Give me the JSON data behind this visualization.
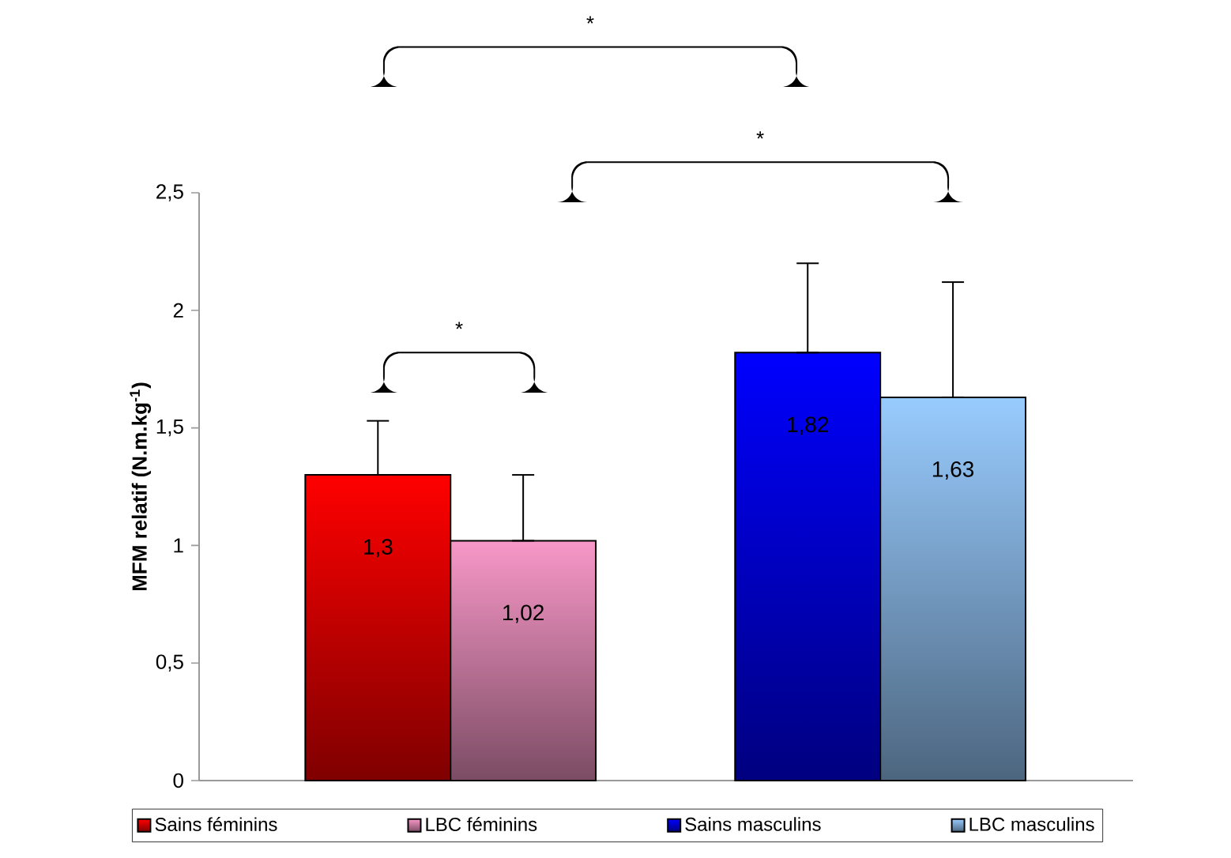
{
  "chart_data": {
    "type": "bar",
    "ylabel": "MFM relatif (N.m.kg$^{-1}$)",
    "categories": [
      null,
      null
    ],
    "series": [
      {
        "name": "Sains féminins",
        "color": "#ff0000",
        "values": [
          1.3,
          null
        ],
        "errors": [
          [
            1.3,
            1.53
          ],
          null
        ],
        "value_labels": [
          "1,3",
          null
        ]
      },
      {
        "name": "LBC féminins",
        "color": "#f898c8",
        "values": [
          1.02,
          null
        ],
        "errors": [
          [
            1.02,
            1.3
          ],
          null
        ],
        "value_labels": [
          "1,02",
          null
        ]
      },
      {
        "name": "Sains masculins",
        "color": "#0000ff",
        "values": [
          null,
          1.82
        ],
        "errors": [
          null,
          [
            1.82,
            2.2
          ]
        ],
        "value_labels": [
          null,
          "1,82"
        ]
      },
      {
        "name": "LBC masculins",
        "color": "#99ccff",
        "values": [
          null,
          1.63
        ],
        "errors": [
          null,
          [
            1.63,
            2.12
          ]
        ],
        "value_labels": [
          null,
          "1,63"
        ]
      }
    ],
    "ylim": [
      0,
      2.5
    ],
    "yticks": [
      0,
      {
        "value": 0.5,
        "label": "0,5"
      },
      1,
      {
        "value": 1.5,
        "label": "1,5"
      },
      2,
      {
        "value": 2.5,
        "label": "2,5"
      }
    ],
    "legend": "bottom",
    "annotations": [
      "*",
      "*",
      "*"
    ]
  }
}
